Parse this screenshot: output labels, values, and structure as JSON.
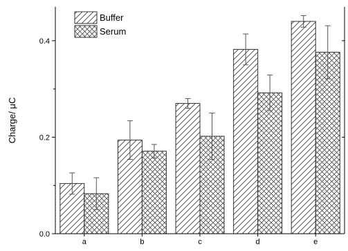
{
  "chart_data": {
    "type": "bar",
    "categories": [
      "a",
      "b",
      "c",
      "d",
      "e"
    ],
    "series": [
      {
        "name": "Buffer",
        "pattern": "diagonal-hatch",
        "values": [
          0.104,
          0.194,
          0.27,
          0.382,
          0.44
        ],
        "errors": [
          0.022,
          0.04,
          0.01,
          0.032,
          0.012
        ]
      },
      {
        "name": "Serum",
        "pattern": "cross-hatch",
        "values": [
          0.083,
          0.171,
          0.202,
          0.292,
          0.376
        ],
        "errors": [
          0.033,
          0.014,
          0.048,
          0.037,
          0.055
        ]
      }
    ],
    "ylabel": "Charge/ μC",
    "xlabel": "",
    "ylim": [
      0,
      0.47
    ],
    "yticks": [
      0.0,
      0.2,
      0.4
    ],
    "ytick_labels": [
      "0.0",
      "0.2",
      "0.4"
    ],
    "legend_position": "top-left",
    "grid": false,
    "bar_stroke_color": "#333333",
    "pattern_color": "#555555"
  }
}
